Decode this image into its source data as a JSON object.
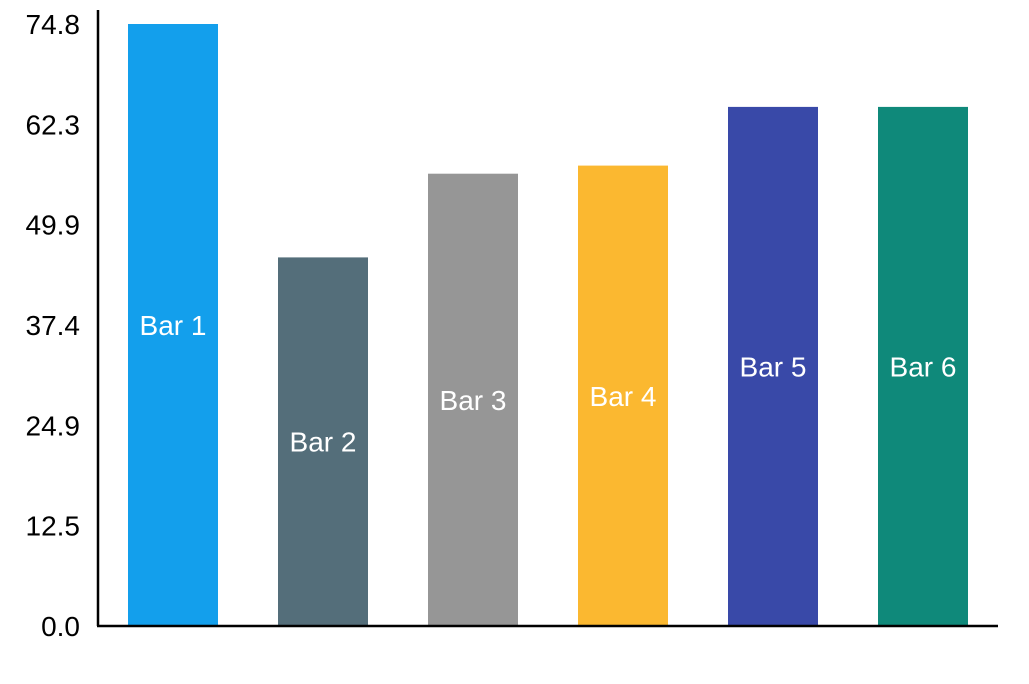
{
  "chart_data": {
    "type": "bar",
    "categories": [
      "Bar 1",
      "Bar 2",
      "Bar 3",
      "Bar 4",
      "Bar 5",
      "Bar 6"
    ],
    "values": [
      74.8,
      45.8,
      56.2,
      57.2,
      64.5,
      64.5
    ],
    "colors": [
      "#139fec",
      "#546e7a",
      "#969696",
      "#fbb830",
      "#3949a8",
      "#0f897a"
    ],
    "label_color": "#ffffff",
    "ylim": [
      0,
      74.8
    ],
    "yticks": [
      "0.0",
      "12.5",
      "24.9",
      "37.4",
      "49.9",
      "62.3",
      "74.8"
    ],
    "title": "",
    "xlabel": "",
    "ylabel": "",
    "grid": false,
    "legend": "none"
  }
}
